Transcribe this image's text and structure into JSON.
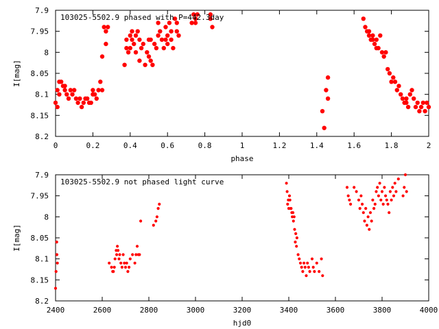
{
  "chart_data": [
    {
      "type": "scatter",
      "title": "103025-5502.9 phased with P=442.3day",
      "xlabel": "phase",
      "ylabel": "I[mag]",
      "xlim": [
        0,
        2
      ],
      "ylim": [
        7.9,
        8.2
      ],
      "y_inverted": true,
      "xticks": [
        "0",
        "0.2",
        "0.4",
        "0.6",
        "0.8",
        "1",
        "1.2",
        "1.4",
        "1.6",
        "1.8",
        "2"
      ],
      "yticks": [
        "7.9",
        "7.95",
        "8",
        "8.05",
        "8.1",
        "8.15",
        "8.2"
      ],
      "marker": "filled-circle-large",
      "color": "#ff0000",
      "series": [
        {
          "x": [
            0.0,
            0.01,
            0.01,
            0.02,
            0.02,
            0.03,
            0.04,
            0.05,
            0.05,
            0.06,
            0.07,
            0.08,
            0.09,
            0.1,
            0.11,
            0.12,
            0.13,
            0.14,
            0.15,
            0.16,
            0.17,
            0.18,
            0.19,
            0.2,
            0.2,
            0.21,
            0.22,
            0.23,
            0.24,
            0.25,
            0.25,
            0.26,
            0.27,
            0.27,
            0.28,
            0.37,
            0.38,
            0.38,
            0.39,
            0.4,
            0.4,
            0.41,
            0.41,
            0.42,
            0.43,
            0.43,
            0.44,
            0.45,
            0.45,
            0.46,
            0.47,
            0.48,
            0.49,
            0.5,
            0.5,
            0.51,
            0.51,
            0.52,
            0.53,
            0.54,
            0.55,
            0.55,
            0.56,
            0.57,
            0.58,
            0.59,
            0.59,
            0.6,
            0.6,
            0.61,
            0.62,
            0.62,
            0.63,
            0.64,
            0.65,
            0.65,
            0.66,
            0.73,
            0.74,
            0.75,
            0.75,
            0.76,
            0.83,
            0.83,
            0.84,
            1.43,
            1.44,
            1.45,
            1.46,
            1.46,
            1.65,
            1.66,
            1.67,
            1.68,
            1.68,
            1.69,
            1.7,
            1.7,
            1.71,
            1.72,
            1.72,
            1.73,
            1.74,
            1.75,
            1.76,
            1.77,
            1.78,
            1.79,
            1.8,
            1.81,
            1.82,
            1.83,
            1.84,
            1.85,
            1.86,
            1.87,
            1.88,
            1.88,
            1.89,
            1.9,
            1.91,
            1.92,
            1.93,
            1.94,
            1.95,
            1.96,
            1.97,
            1.98,
            1.99,
            2.0
          ],
          "y": [
            8.12,
            8.13,
            8.09,
            8.07,
            8.1,
            8.07,
            8.08,
            8.09,
            8.08,
            8.1,
            8.11,
            8.09,
            8.1,
            8.09,
            8.11,
            8.12,
            8.11,
            8.13,
            8.12,
            8.11,
            8.11,
            8.12,
            8.12,
            8.09,
            8.1,
            8.1,
            8.11,
            8.09,
            8.07,
            8.09,
            8.01,
            7.94,
            7.95,
            7.98,
            7.94,
            8.03,
            7.97,
            7.99,
            8.0,
            7.96,
            7.99,
            7.95,
            7.97,
            7.98,
            7.96,
            8.0,
            7.95,
            8.02,
            7.97,
            7.99,
            7.98,
            8.03,
            8.0,
            8.01,
            7.97,
            8.02,
            7.97,
            8.03,
            7.98,
            7.99,
            7.96,
            7.93,
            7.95,
            7.97,
            7.99,
            7.97,
            7.94,
            7.96,
            7.98,
            7.93,
            7.95,
            7.97,
            7.99,
            7.92,
            7.93,
            7.95,
            7.96,
            7.93,
            7.91,
            7.92,
            7.93,
            7.91,
            7.91,
            7.92,
            7.94,
            8.14,
            8.18,
            8.09,
            8.06,
            8.11,
            7.92,
            7.94,
            7.95,
            7.96,
            7.95,
            7.97,
            7.96,
            7.97,
            7.98,
            7.97,
            7.99,
            7.99,
            7.96,
            8.0,
            8.01,
            8.0,
            8.04,
            8.05,
            8.07,
            8.06,
            8.07,
            8.09,
            8.08,
            8.1,
            8.11,
            8.12,
            8.11,
            8.12,
            8.13,
            8.1,
            8.09,
            8.11,
            8.13,
            8.12,
            8.14,
            8.13,
            8.12,
            8.14,
            8.12,
            8.13
          ]
        }
      ]
    },
    {
      "type": "scatter",
      "title": "103025-5502.9 not phased light curve",
      "xlabel": "hjd0",
      "ylabel": "I[mag]",
      "xlim": [
        2400,
        4000
      ],
      "ylim": [
        7.9,
        8.2
      ],
      "y_inverted": true,
      "xticks": [
        "2400",
        "2600",
        "2800",
        "3000",
        "3200",
        "3400",
        "3600",
        "3800",
        "4000"
      ],
      "yticks": [
        "7.9",
        "7.95",
        "8",
        "8.05",
        "8.1",
        "8.15",
        "8.2"
      ],
      "marker": "filled-circle-small",
      "color": "#ff0000",
      "series": [
        {
          "x": [
            2400,
            2402,
            2405,
            2406,
            2408,
            2630,
            2640,
            2645,
            2648,
            2652,
            2655,
            2660,
            2662,
            2665,
            2668,
            2672,
            2675,
            2680,
            2685,
            2690,
            2695,
            2700,
            2705,
            2710,
            2715,
            2720,
            2730,
            2740,
            2745,
            2750,
            2755,
            2760,
            2765,
            2820,
            2830,
            2835,
            2840,
            2845,
            3390,
            3393,
            3395,
            3398,
            3400,
            3403,
            3405,
            3408,
            3410,
            3413,
            3415,
            3418,
            3420,
            3423,
            3425,
            3428,
            3430,
            3433,
            3435,
            3440,
            3445,
            3450,
            3455,
            3460,
            3465,
            3470,
            3475,
            3480,
            3485,
            3490,
            3500,
            3505,
            3510,
            3520,
            3530,
            3540,
            3545,
            3650,
            3655,
            3660,
            3665,
            3680,
            3690,
            3700,
            3705,
            3710,
            3715,
            3720,
            3725,
            3730,
            3735,
            3740,
            3745,
            3750,
            3755,
            3760,
            3765,
            3770,
            3775,
            3780,
            3785,
            3790,
            3795,
            3800,
            3805,
            3810,
            3815,
            3820,
            3825,
            3830,
            3835,
            3840,
            3845,
            3850,
            3855,
            3860,
            3870,
            3890,
            3895,
            3900,
            3905
          ],
          "y": [
            8.17,
            8.13,
            8.06,
            8.09,
            8.11,
            8.11,
            8.12,
            8.13,
            8.13,
            8.12,
            8.1,
            8.08,
            8.09,
            8.07,
            8.08,
            8.1,
            8.09,
            8.11,
            8.12,
            8.09,
            8.11,
            8.12,
            8.11,
            8.13,
            8.12,
            8.1,
            8.09,
            8.11,
            8.09,
            8.07,
            8.09,
            8.09,
            8.01,
            8.02,
            8.01,
            8.0,
            7.98,
            7.97,
            7.92,
            7.94,
            7.97,
            7.96,
            7.98,
            7.95,
            7.96,
            7.98,
            7.98,
            7.99,
            8.0,
            7.99,
            8.01,
            8.0,
            8.03,
            8.06,
            8.04,
            8.07,
            8.05,
            8.09,
            8.1,
            8.11,
            8.12,
            8.13,
            8.11,
            8.12,
            8.14,
            8.11,
            8.12,
            8.13,
            8.1,
            8.12,
            8.13,
            8.11,
            8.13,
            8.1,
            8.14,
            7.93,
            7.95,
            7.96,
            7.97,
            7.93,
            7.94,
            7.96,
            7.98,
            7.95,
            7.97,
            7.99,
            8.01,
            7.98,
            8.02,
            8.0,
            8.03,
            7.99,
            8.01,
            7.96,
            7.98,
            7.97,
            7.94,
            7.93,
            7.95,
            7.92,
            7.96,
            7.94,
            7.97,
            7.93,
            7.95,
            7.96,
            7.97,
            7.99,
            7.94,
            7.96,
            7.93,
            7.95,
            7.92,
            7.94,
            7.91,
            7.95,
            7.93,
            7.9,
            7.94
          ]
        }
      ]
    }
  ]
}
